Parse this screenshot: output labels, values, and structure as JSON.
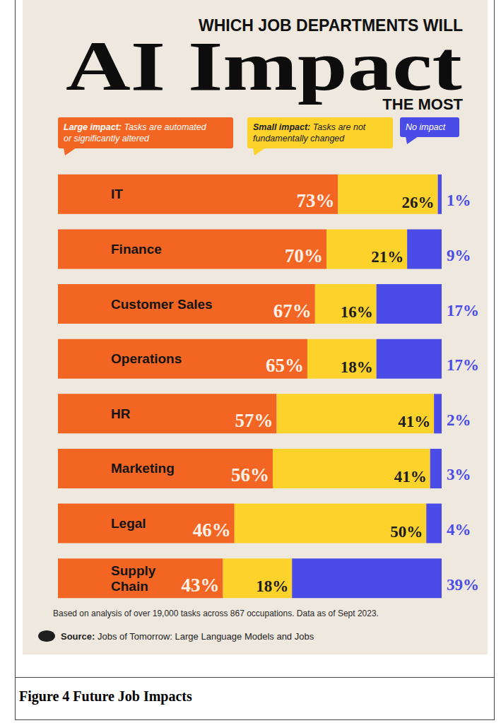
{
  "chart_data": {
    "type": "bar",
    "title": [
      "WHICH JOB DEPARTMENTS WILL",
      "AI Impact",
      "THE MOST"
    ],
    "orientation": "horizontal",
    "stacked": true,
    "data_labels": true,
    "tick_labels": "y",
    "grid": false,
    "legend": "top",
    "categories": [
      "IT",
      "Finance",
      "Customer Sales",
      "Operations",
      "HR",
      "Marketing",
      "Legal",
      "Supply Chain"
    ],
    "xlim": [
      0,
      100
    ],
    "series": [
      {
        "name": "Large impact: Tasks are automated or significantly altered",
        "color": "#f26522",
        "values": [
          73,
          70,
          67,
          65,
          57,
          56,
          46,
          43
        ],
        "value_labels": [
          "73%",
          "70%",
          "67%",
          "65%",
          "57%",
          "56%",
          "46%",
          "43%"
        ]
      },
      {
        "name": "Small impact: Tasks are not fundamentally changed",
        "color": "#fcd22b",
        "values": [
          26,
          21,
          16,
          18,
          41,
          41,
          50,
          18
        ],
        "value_labels": [
          "26%",
          "21%",
          "16%",
          "18%",
          "41%",
          "41%",
          "50%",
          "18%"
        ]
      },
      {
        "name": "No impact",
        "color": "#4b4ce8",
        "values": [
          1,
          9,
          17,
          17,
          2,
          3,
          4,
          39
        ],
        "value_labels": [
          "1%",
          "9%",
          "17%",
          "17%",
          "2%",
          "3%",
          "4%",
          "39%"
        ]
      }
    ],
    "annotations": [
      "Based on analysis of over 19,000 tasks across 867 occupations. Data as of Sept 2023.",
      "Source: Jobs of Tomorrow: Large Language Models and Jobs"
    ],
    "caption": "Figure 4 Future Job Impacts"
  }
}
